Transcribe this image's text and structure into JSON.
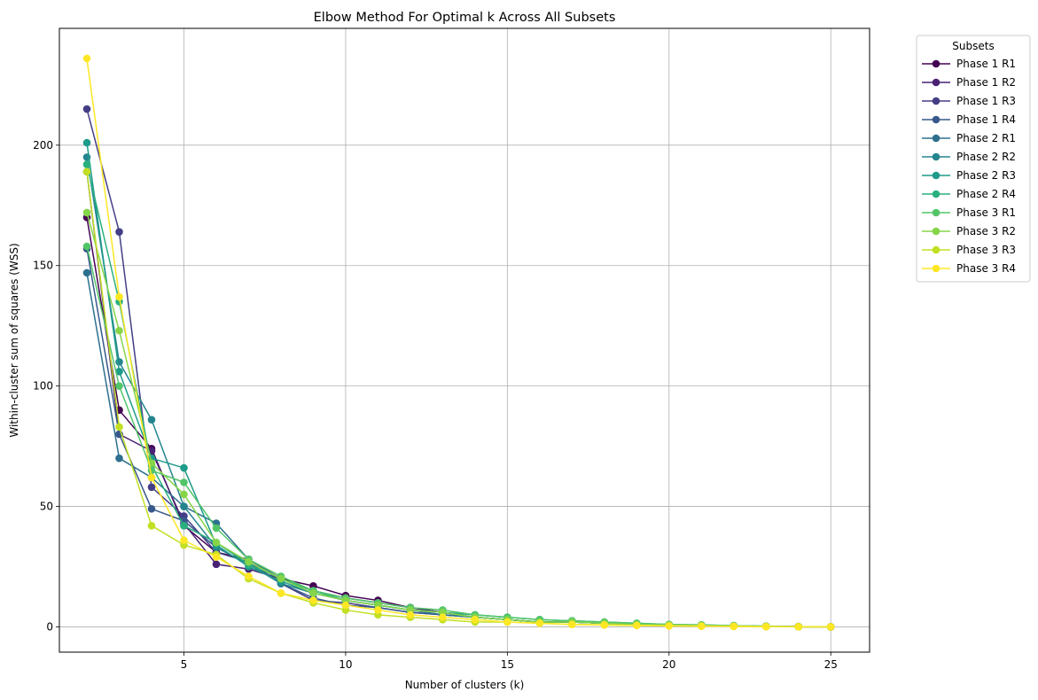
{
  "chart_data": {
    "type": "line",
    "title": "Elbow Method For Optimal k Across All Subsets",
    "xlabel": "Number of clusters (k)",
    "ylabel": "Within-cluster sum of squares (WSS)",
    "xlim": [
      1.15,
      26.2
    ],
    "ylim": [
      -10.5,
      248.5
    ],
    "xticks": [
      5,
      10,
      15,
      20,
      25
    ],
    "yticks": [
      0,
      50,
      100,
      150,
      200
    ],
    "grid": true,
    "legend": {
      "title": "Subsets",
      "placement": "outside-top-right"
    },
    "x": [
      2,
      3,
      4,
      5,
      6,
      7,
      8,
      9,
      10,
      11,
      12,
      13,
      14,
      15,
      16,
      17,
      18,
      19,
      20,
      21,
      22,
      23,
      24,
      25
    ],
    "series": [
      {
        "name": "Phase 1 R1",
        "color": "#440154",
        "values": [
          170,
          90,
          74,
          42,
          31,
          28,
          20,
          17,
          13,
          11,
          8,
          6,
          4,
          3,
          2,
          2,
          1.5,
          1,
          0.8,
          0.6,
          0.4,
          0.2,
          0.1,
          0
        ]
      },
      {
        "name": "Phase 1 R2",
        "color": "#482173",
        "values": [
          189,
          80,
          73,
          43,
          26,
          24,
          20,
          15,
          12,
          10,
          8,
          6,
          4,
          3,
          2,
          2,
          1.5,
          1,
          0.8,
          0.6,
          0.4,
          0.2,
          0.1,
          0
        ]
      },
      {
        "name": "Phase 1 R3",
        "color": "#433e85",
        "values": [
          215,
          164,
          58,
          46,
          31,
          27,
          18,
          11,
          10,
          8,
          6,
          5,
          4,
          3,
          2,
          2,
          1.5,
          1,
          0.8,
          0.6,
          0.4,
          0.2,
          0.1,
          0
        ]
      },
      {
        "name": "Phase 1 R4",
        "color": "#38588c",
        "values": [
          157,
          80,
          49,
          44,
          33,
          26,
          18,
          12,
          9,
          8,
          6,
          5,
          4,
          3,
          2,
          2,
          1.5,
          1,
          0.8,
          0.6,
          0.4,
          0.2,
          0.1,
          0
        ]
      },
      {
        "name": "Phase 2 R1",
        "color": "#2d708e",
        "values": [
          147,
          70,
          62,
          50,
          43,
          28,
          20,
          14,
          11,
          9,
          7,
          5,
          4,
          3,
          2,
          2,
          1.5,
          1,
          0.8,
          0.6,
          0.4,
          0.2,
          0.1,
          0
        ]
      },
      {
        "name": "Phase 2 R2",
        "color": "#25858e",
        "values": [
          195,
          110,
          86,
          50,
          33,
          26,
          18,
          14,
          11,
          9,
          7,
          6,
          4,
          3,
          2,
          2,
          1.5,
          1,
          0.8,
          0.6,
          0.4,
          0.2,
          0.1,
          0
        ]
      },
      {
        "name": "Phase 2 R3",
        "color": "#1e9b8a",
        "values": [
          201,
          106,
          70,
          66,
          34,
          25,
          19,
          14,
          11,
          9,
          7,
          6,
          5,
          4,
          3,
          2.5,
          2,
          1.5,
          1,
          0.8,
          0.5,
          0.3,
          0.1,
          0
        ]
      },
      {
        "name": "Phase 2 R4",
        "color": "#2ab07f",
        "values": [
          192,
          135,
          67,
          42,
          35,
          26,
          20,
          15,
          11,
          9,
          7,
          6,
          4,
          3,
          2,
          2,
          1.5,
          1,
          0.8,
          0.6,
          0.4,
          0.2,
          0.1,
          0
        ]
      },
      {
        "name": "Phase 3 R1",
        "color": "#52c569",
        "values": [
          158,
          100,
          65,
          60,
          41,
          28,
          21,
          15,
          12,
          10,
          8,
          7,
          5,
          4,
          3,
          2.5,
          2,
          1.5,
          1,
          0.8,
          0.5,
          0.3,
          0.1,
          0
        ]
      },
      {
        "name": "Phase 3 R2",
        "color": "#86d549",
        "values": [
          172,
          123,
          68,
          55,
          35,
          27,
          20,
          14,
          11,
          9,
          7,
          6,
          4,
          3,
          2,
          2,
          1.5,
          1,
          0.8,
          0.6,
          0.4,
          0.2,
          0.1,
          0
        ]
      },
      {
        "name": "Phase 3 R3",
        "color": "#c2df23",
        "values": [
          189,
          83,
          42,
          34,
          30,
          20,
          14,
          10,
          7,
          5,
          4,
          3,
          2,
          2,
          1.5,
          1,
          0.8,
          0.6,
          0.4,
          0.3,
          0.2,
          0.1,
          0.05,
          0
        ]
      },
      {
        "name": "Phase 3 R4",
        "color": "#fde725",
        "values": [
          236,
          137,
          62,
          36,
          29,
          21,
          14,
          11,
          9,
          7,
          5,
          4,
          3,
          2,
          1.5,
          1,
          0.8,
          0.6,
          0.4,
          0.3,
          0.2,
          0.1,
          0.05,
          0
        ]
      }
    ]
  }
}
